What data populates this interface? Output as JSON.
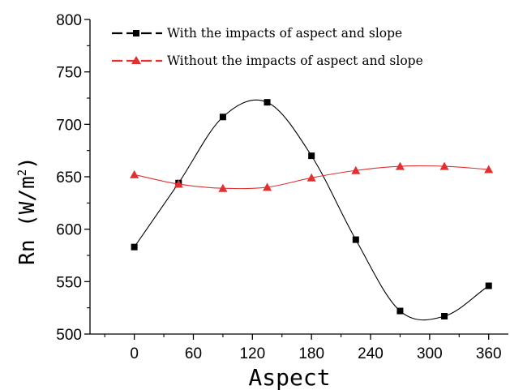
{
  "chart_data": {
    "type": "line",
    "xlabel": "Aspect",
    "ylabel_main": "Rn (W/m",
    "ylabel_sup": "2",
    "ylabel_close": ")",
    "xlim": [
      -45,
      380
    ],
    "ylim": [
      500,
      800
    ],
    "xticks": [
      0,
      60,
      120,
      180,
      240,
      300,
      360
    ],
    "xticks_minor": [
      -30,
      30,
      90,
      150,
      210,
      270,
      330
    ],
    "yticks": [
      500,
      550,
      600,
      650,
      700,
      750,
      800
    ],
    "yticks_minor": [
      525,
      575,
      625,
      675,
      725,
      775
    ],
    "grid": false,
    "legend_position": "top-left",
    "series": [
      {
        "name": "With the impacts of aspect and slope",
        "color": "#000000",
        "marker": "square",
        "x": [
          0,
          45,
          90,
          135,
          180,
          225,
          270,
          315,
          360
        ],
        "y": [
          583,
          644,
          707,
          721,
          670,
          590,
          522,
          517,
          546
        ]
      },
      {
        "name": "Without the impacts of aspect and slope",
        "color": "#e03030",
        "marker": "triangle",
        "x": [
          0,
          45,
          90,
          135,
          180,
          225,
          270,
          315,
          360
        ],
        "y": [
          652,
          643,
          639,
          640,
          649,
          656,
          660,
          660,
          657
        ]
      }
    ]
  }
}
